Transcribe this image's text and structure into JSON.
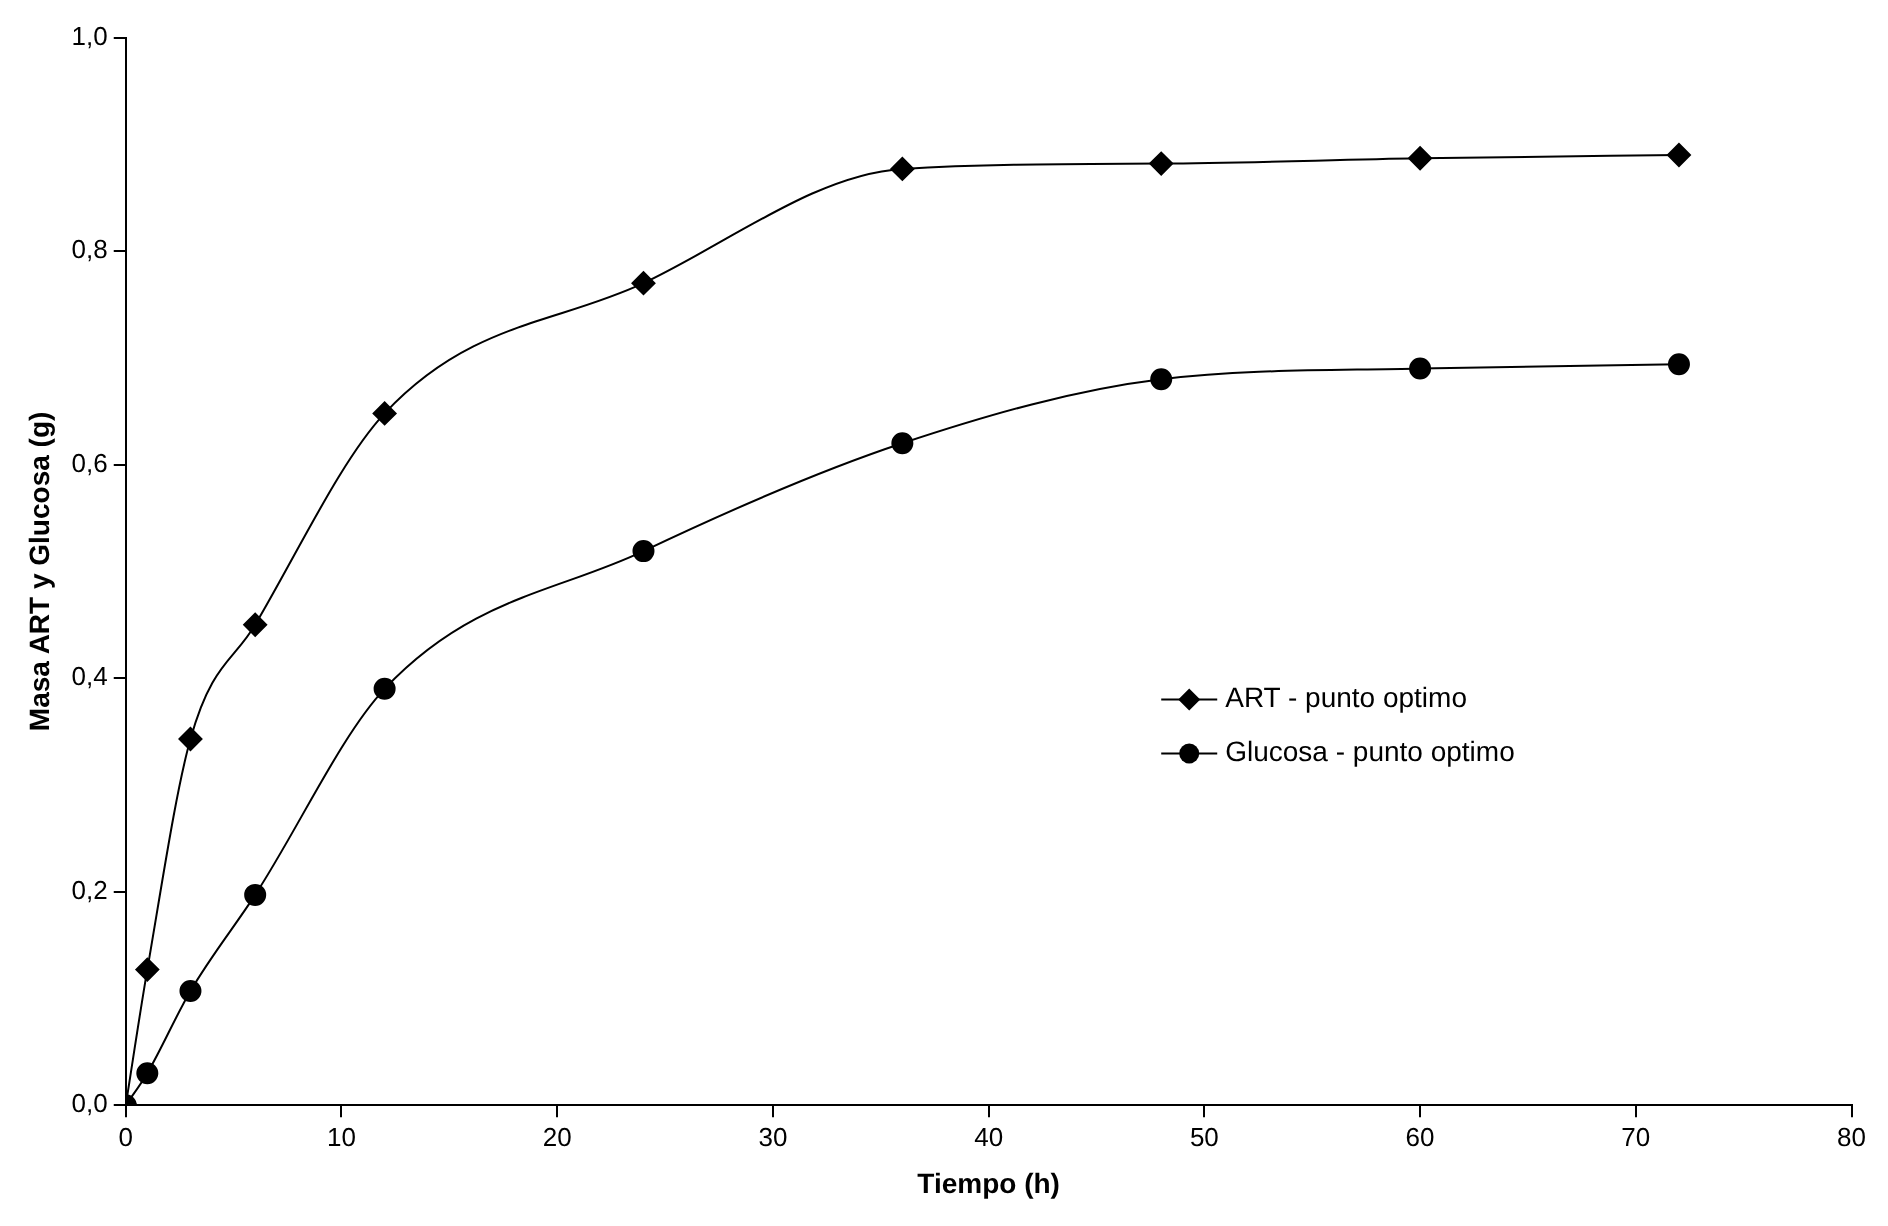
{
  "chart_data": {
    "type": "line",
    "xlabel": "Tiempo (h)",
    "ylabel": "Masa ART y Glucosa (g)",
    "xlim": [
      0,
      80
    ],
    "xticks": [
      0,
      10,
      20,
      30,
      40,
      50,
      60,
      70,
      80
    ],
    "ylim": [
      0,
      1
    ],
    "yticks": [
      {
        "value": 0,
        "label": "0,0"
      },
      {
        "value": 0.2,
        "label": "0,2"
      },
      {
        "value": 0.4,
        "label": "0,4"
      },
      {
        "value": 0.6,
        "label": "0,6"
      },
      {
        "value": 0.8,
        "label": "0,8"
      },
      {
        "value": 1,
        "label": "1,0"
      }
    ],
    "grid": false,
    "legend": "right",
    "series": [
      {
        "name": "ART - punto optimo",
        "color": "#000000",
        "marker": "diamond",
        "x": [
          0,
          1,
          3,
          6,
          12,
          24,
          36,
          48,
          60,
          72
        ],
        "values": [
          0,
          0.127,
          0.343,
          0.45,
          0.648,
          0.77,
          0.877,
          0.882,
          0.887,
          0.89
        ]
      },
      {
        "name": "Glucosa - punto optimo",
        "color": "#000000",
        "marker": "circle",
        "x": [
          0,
          1,
          3,
          6,
          12,
          24,
          36,
          48,
          60,
          72
        ],
        "values": [
          0,
          0.03,
          0.107,
          0.197,
          0.39,
          0.519,
          0.62,
          0.68,
          0.69,
          0.694
        ]
      }
    ]
  }
}
